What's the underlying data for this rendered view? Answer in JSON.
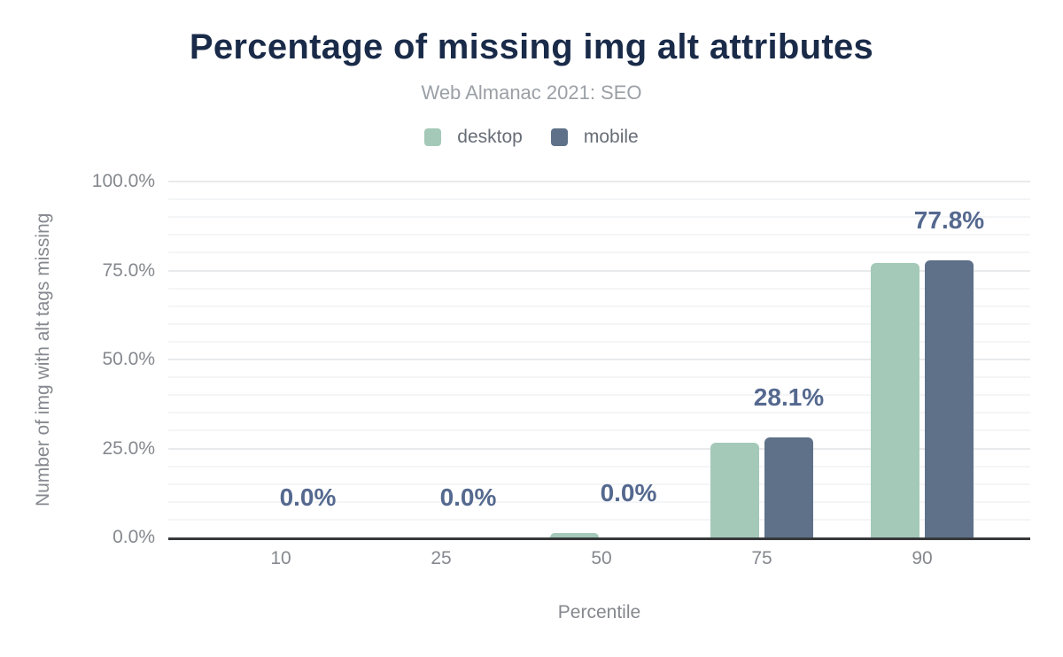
{
  "colors": {
    "background": "#ffffff",
    "title": "#1a2b49",
    "subtitle": "#9aa0a6",
    "legend_text": "#676d76",
    "axis_text": "#85888e",
    "data_label": "#55698f",
    "desktop": "#a4c9b8",
    "mobile": "#5f7189",
    "grid_major": "#e8eaec",
    "grid_minor": "#f4f5f6",
    "baseline": "#37383a"
  },
  "chart_data": {
    "type": "bar",
    "title": "Percentage of missing img alt attributes",
    "subtitle": "Web Almanac 2021: SEO",
    "categories": [
      "10",
      "25",
      "50",
      "75",
      "90"
    ],
    "series": [
      {
        "name": "desktop",
        "color": "#a4c9b8",
        "values": [
          0.0,
          0.0,
          1.2,
          26.5,
          77.0
        ]
      },
      {
        "name": "mobile",
        "color": "#5f7189",
        "values": [
          0.0,
          0.0,
          0.0,
          28.1,
          77.8
        ]
      }
    ],
    "data_labels": [
      "0.0%",
      "0.0%",
      "0.0%",
      "28.1%",
      "77.8%"
    ],
    "xlabel": "Percentile",
    "ylabel": "Number of img with alt tags missing",
    "ylim": [
      0,
      100
    ],
    "ytick_step": 25,
    "ytick_labels": [
      "0.0%",
      "25.0%",
      "50.0%",
      "75.0%",
      "100.0%"
    ],
    "minor_grid_step": 5,
    "grid": true,
    "legend_position": "top"
  }
}
